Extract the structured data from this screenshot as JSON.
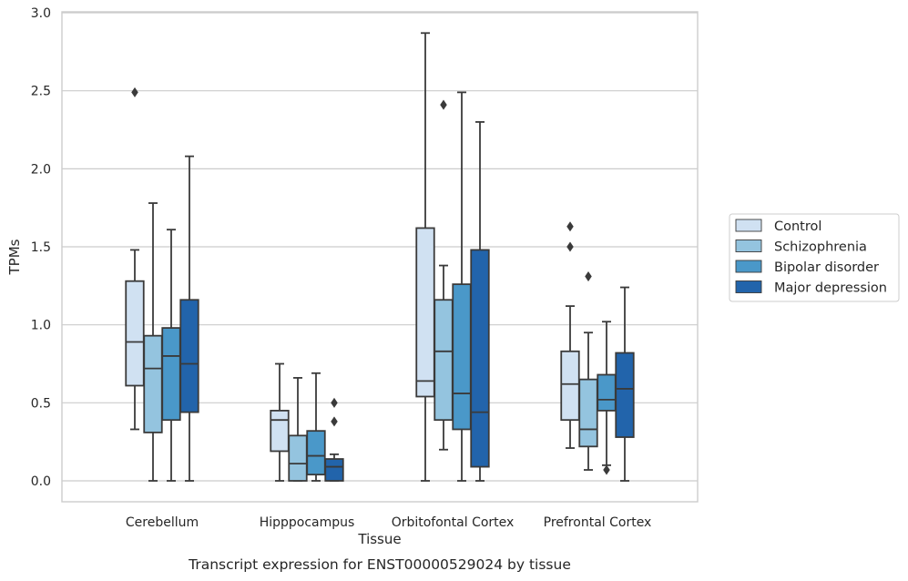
{
  "chart_data": {
    "type": "box",
    "title": "",
    "caption": "Transcript expression for ENST00000529024 by tissue",
    "xlabel": "Tissue",
    "ylabel": "TPMs",
    "ylim": [
      -0.14,
      3.02
    ],
    "yticks": [
      0.0,
      0.5,
      1.0,
      1.5,
      2.0,
      2.5,
      3.0
    ],
    "ytick_labels": [
      "0.0",
      "0.5",
      "1.0",
      "1.5",
      "2.0",
      "2.5",
      "3.0"
    ],
    "grid": "horizontal",
    "legend_position": "right",
    "categories": [
      "Cerebellum",
      "Hipppocampus",
      "Orbitofontal Cortex",
      "Prefrontal Cortex"
    ],
    "series": [
      {
        "name": "Control",
        "color": "#d0e1f2",
        "boxes": [
          {
            "whisker_low": 0.33,
            "q1": 0.61,
            "median": 0.89,
            "q3": 1.28,
            "whisker_high": 1.48,
            "outliers": [
              2.49
            ]
          },
          {
            "whisker_low": 0.0,
            "q1": 0.19,
            "median": 0.39,
            "q3": 0.45,
            "whisker_high": 0.75,
            "outliers": []
          },
          {
            "whisker_low": 0.0,
            "q1": 0.54,
            "median": 0.64,
            "q3": 1.62,
            "whisker_high": 2.87,
            "outliers": []
          },
          {
            "whisker_low": 0.21,
            "q1": 0.39,
            "median": 0.62,
            "q3": 0.83,
            "whisker_high": 1.12,
            "outliers": [
              1.5,
              1.63
            ]
          }
        ]
      },
      {
        "name": "Schizophrenia",
        "color": "#94c4df",
        "boxes": [
          {
            "whisker_low": 0.0,
            "q1": 0.31,
            "median": 0.72,
            "q3": 0.93,
            "whisker_high": 1.78,
            "outliers": []
          },
          {
            "whisker_low": 0.0,
            "q1": 0.0,
            "median": 0.11,
            "q3": 0.29,
            "whisker_high": 0.66,
            "outliers": []
          },
          {
            "whisker_low": 0.2,
            "q1": 0.39,
            "median": 0.83,
            "q3": 1.16,
            "whisker_high": 1.38,
            "outliers": [
              2.41
            ]
          },
          {
            "whisker_low": 0.07,
            "q1": 0.22,
            "median": 0.33,
            "q3": 0.65,
            "whisker_high": 0.95,
            "outliers": [
              1.31
            ]
          }
        ]
      },
      {
        "name": "Bipolar disorder",
        "color": "#4a98c9",
        "boxes": [
          {
            "whisker_low": 0.0,
            "q1": 0.39,
            "median": 0.8,
            "q3": 0.98,
            "whisker_high": 1.61,
            "outliers": []
          },
          {
            "whisker_low": 0.0,
            "q1": 0.04,
            "median": 0.16,
            "q3": 0.32,
            "whisker_high": 0.69,
            "outliers": []
          },
          {
            "whisker_low": 0.0,
            "q1": 0.33,
            "median": 0.56,
            "q3": 1.26,
            "whisker_high": 2.49,
            "outliers": []
          },
          {
            "whisker_low": 0.1,
            "q1": 0.45,
            "median": 0.52,
            "q3": 0.68,
            "whisker_high": 1.02,
            "outliers": [
              0.07
            ]
          }
        ]
      },
      {
        "name": "Major depression",
        "color": "#2264ab",
        "boxes": [
          {
            "whisker_low": 0.0,
            "q1": 0.44,
            "median": 0.75,
            "q3": 1.16,
            "whisker_high": 2.08,
            "outliers": []
          },
          {
            "whisker_low": 0.0,
            "q1": 0.0,
            "median": 0.09,
            "q3": 0.14,
            "whisker_high": 0.17,
            "outliers": [
              0.38,
              0.5
            ]
          },
          {
            "whisker_low": 0.0,
            "q1": 0.09,
            "median": 0.44,
            "q3": 1.48,
            "whisker_high": 2.3,
            "outliers": []
          },
          {
            "whisker_low": 0.0,
            "q1": 0.28,
            "median": 0.59,
            "q3": 0.82,
            "whisker_high": 1.24,
            "outliers": []
          }
        ]
      }
    ]
  }
}
